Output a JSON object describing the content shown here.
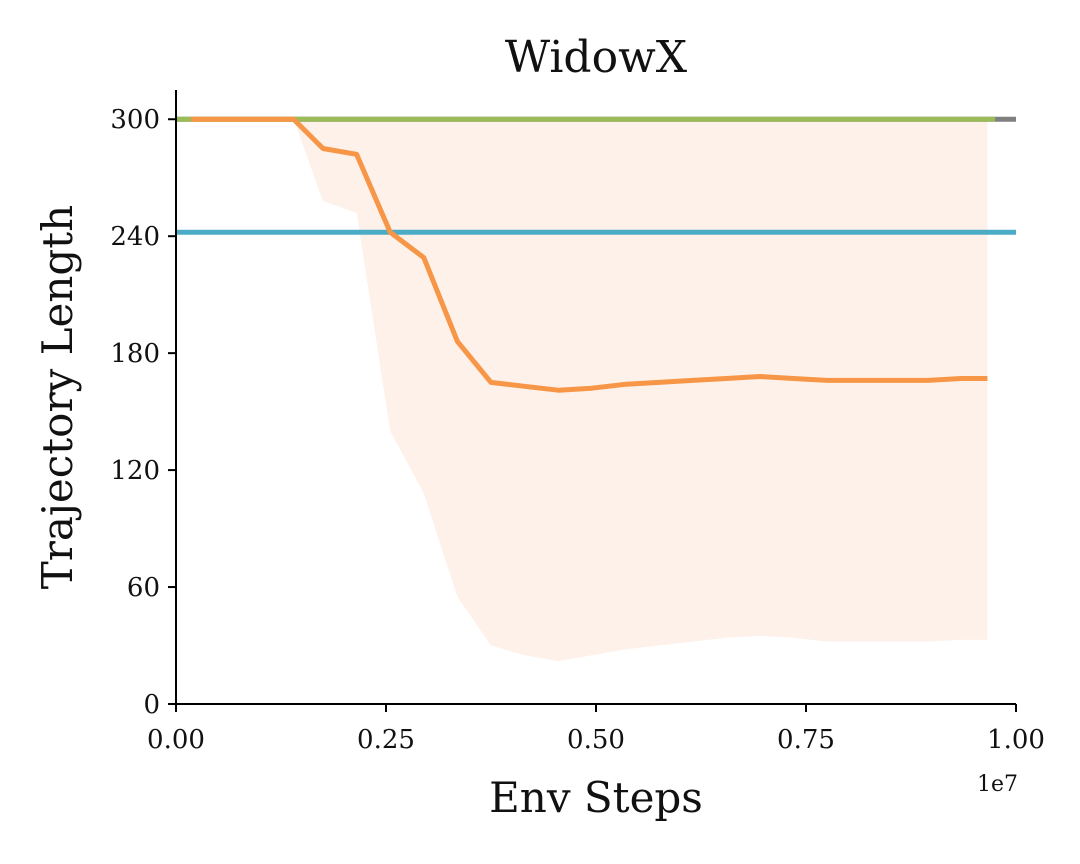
{
  "chart_data": {
    "type": "line",
    "title": "WidowX",
    "xlabel": "Env Steps",
    "ylabel": "Trajectory Length",
    "x_offset_label": "1e7",
    "xlim": [
      0,
      1.0
    ],
    "ylim": [
      0,
      315
    ],
    "xticks": [
      0.0,
      0.25,
      0.5,
      0.75,
      1.0
    ],
    "xtick_labels": [
      "0.00",
      "0.25",
      "0.50",
      "0.75",
      "1.00"
    ],
    "yticks": [
      0,
      60,
      120,
      180,
      240,
      300
    ],
    "ytick_labels": [
      "0",
      "60",
      "120",
      "180",
      "240",
      "300"
    ],
    "grid": false,
    "colors": {
      "gray": "#808080",
      "green": "#9bbb59",
      "blue": "#4bacc6",
      "orange": "#f79646",
      "orange_band": "#fdf1ea"
    },
    "series": [
      {
        "color_key": "gray",
        "x": [
          0.0,
          1.0
        ],
        "y": [
          300,
          300
        ]
      },
      {
        "color_key": "green",
        "x": [
          0.0,
          0.975
        ],
        "y": [
          300,
          300
        ]
      },
      {
        "color_key": "blue",
        "x": [
          0.0,
          1.0
        ],
        "y": [
          242,
          242
        ]
      },
      {
        "color_key": "orange",
        "x": [
          0.018,
          0.05,
          0.1,
          0.14,
          0.175,
          0.215,
          0.255,
          0.295,
          0.335,
          0.375,
          0.415,
          0.455,
          0.495,
          0.535,
          0.575,
          0.615,
          0.655,
          0.695,
          0.735,
          0.775,
          0.815,
          0.855,
          0.895,
          0.935,
          0.966
        ],
        "y": [
          300,
          300,
          300,
          300,
          285,
          282,
          242,
          229,
          186,
          165,
          163,
          161,
          162,
          164,
          165,
          166,
          167,
          168,
          167,
          166,
          166,
          166,
          166,
          167,
          167
        ],
        "lower": [
          300,
          300,
          300,
          300,
          258,
          252,
          140,
          108,
          55,
          30,
          25,
          22,
          25,
          28,
          30,
          32,
          34,
          35,
          34,
          32,
          32,
          32,
          32,
          33,
          33
        ],
        "upper": [
          300,
          300,
          300,
          300,
          300,
          300,
          300,
          300,
          300,
          300,
          300,
          300,
          300,
          300,
          300,
          300,
          300,
          300,
          300,
          300,
          300,
          300,
          300,
          300,
          300
        ]
      }
    ]
  }
}
